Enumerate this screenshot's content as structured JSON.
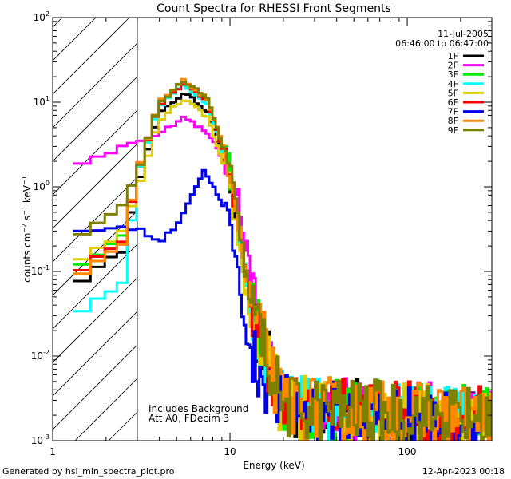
{
  "chart_data": {
    "type": "line",
    "title": "Count Spectra for RHESSI Front Segments",
    "xlabel": "Energy (keV)",
    "ylabel": "counts cm⁻² s⁻¹ keV⁻¹",
    "xscale": "log",
    "yscale": "log",
    "xlim": [
      1,
      300
    ],
    "ylim": [
      0.001,
      100
    ],
    "x_tick_labels": [
      {
        "value": 1,
        "label": "1"
      },
      {
        "value": 10,
        "label": "10"
      },
      {
        "value": 100,
        "label": "100"
      }
    ],
    "y_tick_labels": [
      {
        "value": 0.001,
        "base": "10",
        "exp": "-3"
      },
      {
        "value": 0.01,
        "base": "10",
        "exp": "-2"
      },
      {
        "value": 0.1,
        "base": "10",
        "exp": "-1"
      },
      {
        "value": 1,
        "base": "10",
        "exp": "0"
      },
      {
        "value": 10,
        "base": "10",
        "exp": "1"
      },
      {
        "value": 100,
        "base": "10",
        "exp": "2"
      }
    ],
    "date": "11-Jul-2005",
    "time_range": "06:46:00 to 06:47:00",
    "excluded_region_max_kev": 3,
    "annotations": [
      "Includes Background",
      "Att A0, FDecim 3"
    ],
    "series": [
      {
        "name": "1F",
        "color": "#000000",
        "peak_energy": 5.5,
        "peak_value": 13,
        "low_value": 0.06
      },
      {
        "name": "2F",
        "color": "#ff00ff",
        "peak_energy": 5.5,
        "peak_value": 6.9,
        "low_value": 1.5
      },
      {
        "name": "3F",
        "color": "#00ee00",
        "peak_energy": 5.3,
        "peak_value": 17,
        "low_value": 0.09
      },
      {
        "name": "4F",
        "color": "#00ffff",
        "peak_energy": 5.5,
        "peak_value": 16,
        "low_value": 0.025
      },
      {
        "name": "5F",
        "color": "#ddcc00",
        "peak_energy": 5.5,
        "peak_value": 11,
        "low_value": 0.1
      },
      {
        "name": "6F",
        "color": "#ff0000",
        "peak_energy": 5.5,
        "peak_value": 17,
        "low_value": 0.08
      },
      {
        "name": "7F",
        "color": "#0000ee",
        "peak_energy": 7.2,
        "peak_value": 1.6,
        "low_value": 0.3
      },
      {
        "name": "8F",
        "color": "#ff8800",
        "peak_energy": 5.5,
        "peak_value": 18,
        "low_value": 0.07
      },
      {
        "name": "9F",
        "color": "#808000",
        "peak_energy": 5.5,
        "peak_value": 18,
        "low_value": 0.2
      }
    ]
  },
  "footer": {
    "generated": "Generated by hsi_min_spectra_plot.pro",
    "timestamp": "12-Apr-2023 00:18"
  }
}
